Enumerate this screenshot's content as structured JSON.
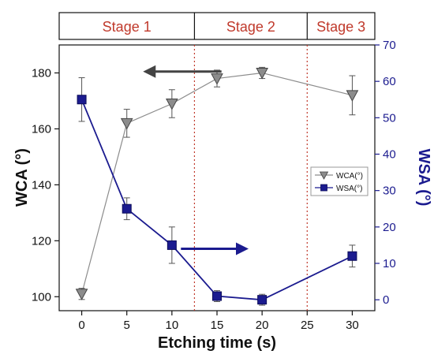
{
  "chart_data": {
    "type": "line",
    "xlabel": "Etching time (s)",
    "ylabel_left": "WCA (°)",
    "ylabel_right": "WSA (°)",
    "x": [
      0,
      5,
      10,
      15,
      20,
      30
    ],
    "x_ticks": [
      0,
      5,
      10,
      15,
      20,
      25,
      30
    ],
    "xlim": [
      -2.5,
      32.5
    ],
    "ylim_left": [
      95,
      190
    ],
    "ylim_right": [
      -3,
      70
    ],
    "y_ticks_left": [
      100,
      120,
      140,
      160,
      180
    ],
    "y_ticks_right": [
      0,
      10,
      20,
      30,
      40,
      50,
      60,
      70
    ],
    "series": [
      {
        "name": "WCA(°)",
        "axis": "left",
        "marker": "triangle-down",
        "color": "#8c8c8c",
        "values": [
          101,
          162,
          169,
          178,
          180,
          172
        ],
        "errors": [
          2,
          5,
          5,
          3,
          2,
          7
        ]
      },
      {
        "name": "WSA(°)",
        "axis": "right",
        "marker": "square",
        "color": "#1b1b8f",
        "values": [
          55,
          25,
          15,
          1,
          0,
          12
        ],
        "errors": [
          6,
          3,
          5,
          1.5,
          1.5,
          3
        ]
      }
    ],
    "stages": [
      {
        "label": "Stage 1",
        "x_start": -2.5,
        "x_end": 12.5
      },
      {
        "label": "Stage 2",
        "x_start": 12.5,
        "x_end": 25
      },
      {
        "label": "Stage 3",
        "x_start": 25,
        "x_end": 32.5
      }
    ],
    "stage_boundaries": [
      12.5,
      25
    ],
    "legend_position": "right-middle",
    "grid": false,
    "colors": {
      "stage_text": "#c0392b",
      "boundary_line": "#c0392b",
      "left_axis_label": "#111111",
      "right_axis": "#1b1b8f",
      "wca_arrow": "#444444",
      "wsa_arrow": "#1b1b8f"
    }
  }
}
